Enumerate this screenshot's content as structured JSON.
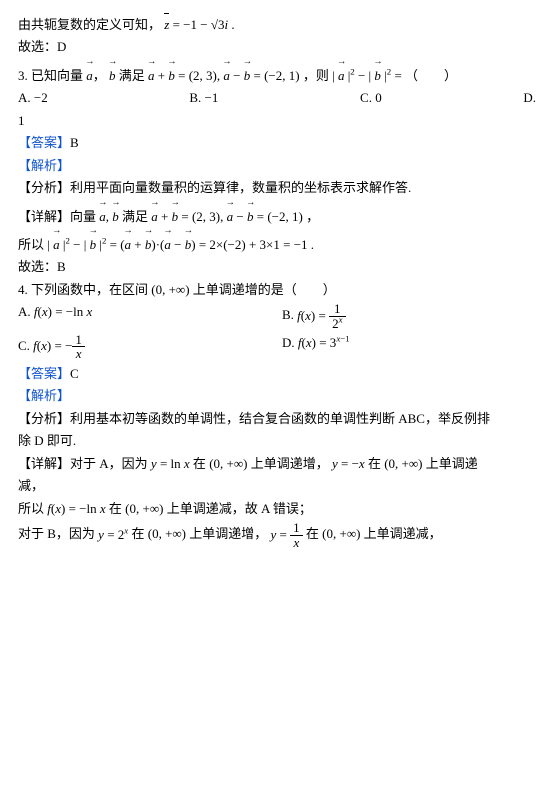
{
  "line1_prefix": "由共轭复数的定义可知，",
  "line1_math": "z̄ = −1 − √3 i .",
  "select_label": "故选：",
  "select_D": "D",
  "select_B": "B",
  "q3_prefix": "3. 已知向量",
  "q3_vec_a": "a",
  "q3_sep": "，",
  "q3_vec_b": "b",
  "q3_mid": "满足 ",
  "q3_math": "a + b = (2, 3), a − b = (−2, 1)",
  "q3_then": "，则 ",
  "q3_expr": "| a |² − | b |² =",
  "q3_paren": "（　　）",
  "q3_A": "A. −2",
  "q3_B": "B. −1",
  "q3_C": "C. 0",
  "q3_D": "D.",
  "q3_D2": "1",
  "answer_label": "【答案】",
  "answer_B": "B",
  "answer_C": "C",
  "analysis_label": "【解析】",
  "fx_analysis": "【分析】利用平面向量数量积的运算律，数量积的坐标表示求解作答.",
  "detail_label": "【详解】",
  "detail1_mid": "向量",
  "detail1_mid2": " 满足 ",
  "detail1_math": "a + b = (2, 3), a − b = (−2, 1)",
  "detail1_end": "，",
  "so_label": "所以",
  "detail2": "| a |² − | b |² = (a + b)·(a − b) = 2×(−2) + 3×1 = −1 .",
  "q4_text": "4. 下列函数中，在区间",
  "q4_interval": "(0, +∞)",
  "q4_end": "上单调递增的是（　　）",
  "q4_A_pre": "A.  ",
  "q4_A_math": "f(x) = −ln x",
  "q4_B_pre": "B.  ",
  "q4_B_num": "1",
  "q4_B_den": "2ˣ",
  "q4_C_pre": "C.  ",
  "q4_C_num": "1",
  "q4_C_den": "x",
  "q4_D_pre": "D.  ",
  "q4_D_math": "f(x) = 3ˣ⁻¹",
  "fx2_analysis_a": "【分析】利用基本初等函数的单调性，结合复合函数的单调性判断 ABC，举反例排",
  "fx2_analysis_b": "除 D 即可.",
  "d2_1a": "对于 A，因为 ",
  "d2_1a_m": "y = ln x",
  "d2_1a_b": "在",
  "d2_1a_c": "上单调递增，",
  "d2_1a_m2": "y = −x",
  "d2_1a_d": "在",
  "d2_1a_e": "上单调递",
  "d2_1b": "减，",
  "d2_2": "所以",
  "d2_2m": "f(x) = −ln x",
  "d2_2a": "在",
  "d2_2b": "上单调递减，故 A 错误；",
  "d2_3a": "对于 B，因为 ",
  "d2_3m1": "y = 2ˣ",
  "d2_3b": "在",
  "d2_3c": "上单调递增，",
  "d2_3m2_num": "1",
  "d2_3m2_den": "x",
  "d2_3d": "在",
  "d2_3e": "上单调递减，",
  "fx": "f(x) = ",
  "yx": "y = "
}
